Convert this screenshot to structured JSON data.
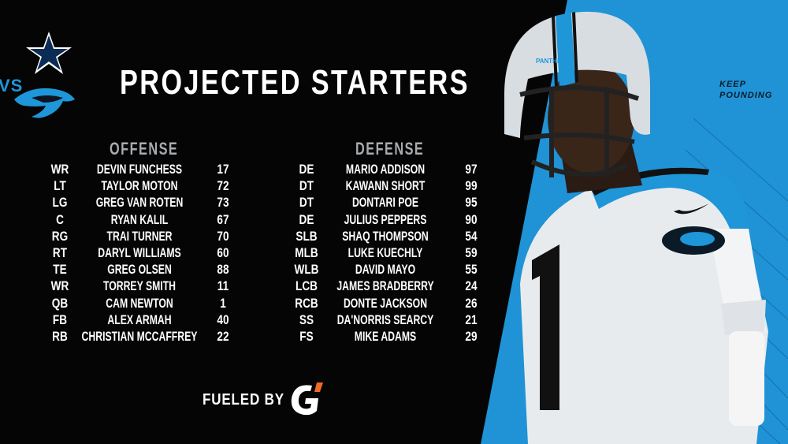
{
  "title": "PROJECTED STARTERS",
  "matchup": {
    "vs_label": "VS",
    "away_logo": "cowboys-star-logo",
    "home_logo": "panthers-logo"
  },
  "tagline": {
    "line1": "KEEP",
    "line2": "POUNDING"
  },
  "offense": {
    "heading": "OFFENSE",
    "players": [
      {
        "pos": "WR",
        "name": "DEVIN FUNCHESS",
        "num": "17"
      },
      {
        "pos": "LT",
        "name": "TAYLOR MOTON",
        "num": "72"
      },
      {
        "pos": "LG",
        "name": "GREG VAN ROTEN",
        "num": "73"
      },
      {
        "pos": "C",
        "name": "RYAN KALIL",
        "num": "67"
      },
      {
        "pos": "RG",
        "name": "TRAI TURNER",
        "num": "70"
      },
      {
        "pos": "RT",
        "name": "DARYL WILLIAMS",
        "num": "60"
      },
      {
        "pos": "TE",
        "name": "GREG OLSEN",
        "num": "88"
      },
      {
        "pos": "WR",
        "name": "TORREY SMITH",
        "num": "11"
      },
      {
        "pos": "QB",
        "name": "CAM NEWTON",
        "num": "1"
      },
      {
        "pos": "FB",
        "name": "ALEX ARMAH",
        "num": "40"
      },
      {
        "pos": "RB",
        "name": "CHRISTIAN MCCAFFREY",
        "num": "22"
      }
    ]
  },
  "defense": {
    "heading": "DEFENSE",
    "players": [
      {
        "pos": "DE",
        "name": "MARIO ADDISON",
        "num": "97"
      },
      {
        "pos": "DT",
        "name": "KAWANN SHORT",
        "num": "99"
      },
      {
        "pos": "DT",
        "name": "DONTARI POE",
        "num": "95"
      },
      {
        "pos": "DE",
        "name": "JULIUS PEPPERS",
        "num": "90"
      },
      {
        "pos": "SLB",
        "name": "SHAQ THOMPSON",
        "num": "54"
      },
      {
        "pos": "MLB",
        "name": "LUKE KUECHLY",
        "num": "59"
      },
      {
        "pos": "WLB",
        "name": "DAVID MAYO",
        "num": "55"
      },
      {
        "pos": "LCB",
        "name": "JAMES BRADBERRY",
        "num": "24"
      },
      {
        "pos": "RCB",
        "name": "DONTE JACKSON",
        "num": "26"
      },
      {
        "pos": "SS",
        "name": "DA'NORRIS SEARCY",
        "num": "21"
      },
      {
        "pos": "FS",
        "name": "MIKE ADAMS",
        "num": "29"
      }
    ]
  },
  "sponsor": {
    "label": "FUELED BY",
    "logo": "gatorade-g-logo"
  },
  "colors": {
    "background": "#050505",
    "panthers_blue": "#1e96d8",
    "heading_gray": "#a8acb0",
    "text": "#ffffff"
  }
}
